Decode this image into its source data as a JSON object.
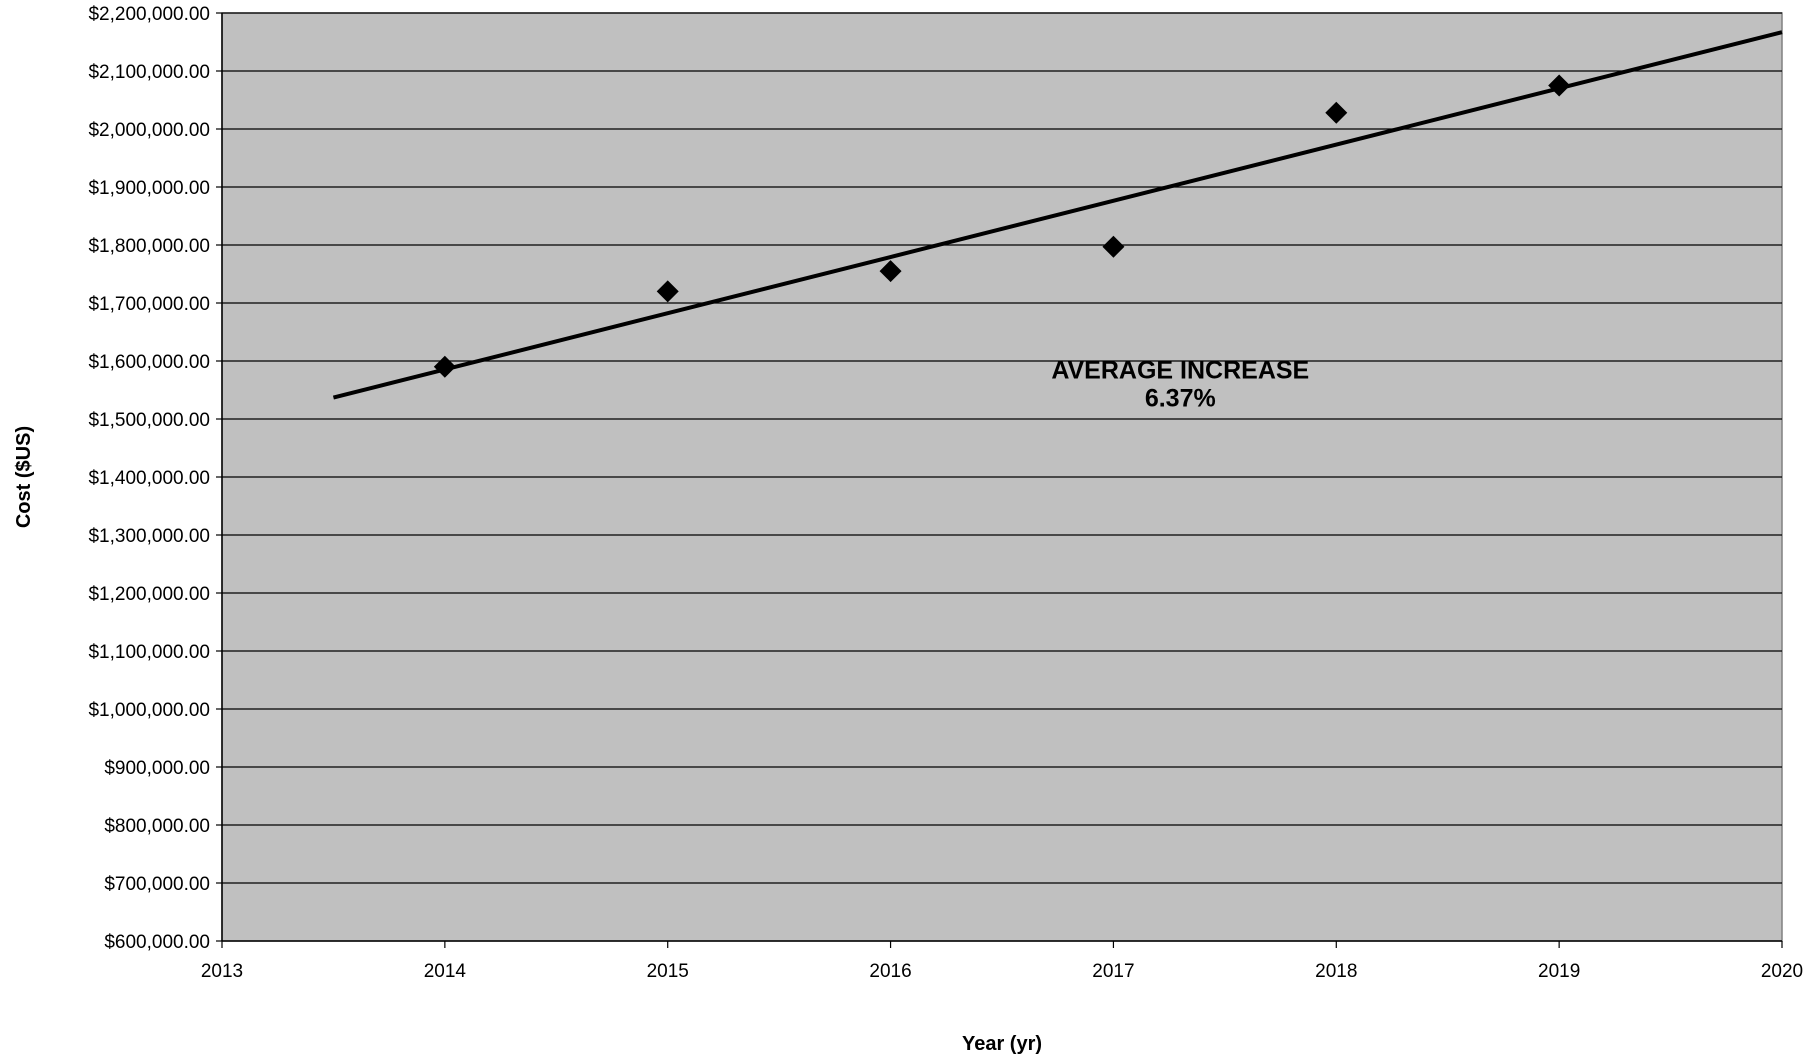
{
  "chart_data": {
    "type": "scatter",
    "title": "",
    "xlabel": "Year (yr)",
    "ylabel": "Cost ($US)",
    "xlim": [
      2013,
      2020
    ],
    "ylim": [
      600000,
      2200000
    ],
    "x_ticks": [
      2013,
      2014,
      2015,
      2016,
      2017,
      2018,
      2019,
      2020
    ],
    "x_tick_labels": [
      "2013",
      "2014",
      "2015",
      "2016",
      "2017",
      "2018",
      "2019",
      "2020"
    ],
    "y_ticks": [
      600000,
      700000,
      800000,
      900000,
      1000000,
      1100000,
      1200000,
      1300000,
      1400000,
      1500000,
      1600000,
      1700000,
      1800000,
      1900000,
      2000000,
      2100000,
      2200000
    ],
    "y_tick_labels": [
      "$600,000.00",
      "$700,000.00",
      "$800,000.00",
      "$900,000.00",
      "$1,000,000.00",
      "$1,100,000.00",
      "$1,200,000.00",
      "$1,300,000.00",
      "$1,400,000.00",
      "$1,500,000.00",
      "$1,600,000.00",
      "$1,700,000.00",
      "$1,800,000.00",
      "$1,900,000.00",
      "$2,000,000.00",
      "$2,100,000.00",
      "$2,200,000.00"
    ],
    "series": [
      {
        "marker": "diamond",
        "color": "#000000",
        "x": [
          2014,
          2015,
          2016,
          2017,
          2018,
          2019
        ],
        "y": [
          1590000,
          1720000,
          1755000,
          1797000,
          2028000,
          2075000
        ]
      }
    ],
    "trendline": {
      "color": "#000000",
      "x": [
        2013.5,
        2020
      ],
      "y": [
        1537000,
        2167000
      ]
    },
    "annotation": {
      "lines": [
        "AVERAGE INCREASE",
        "6.37%"
      ],
      "x": 2017.3,
      "y": 1570000
    },
    "grid": true,
    "plot_background": "#c0c0c0",
    "gridline_color": "#000000"
  }
}
